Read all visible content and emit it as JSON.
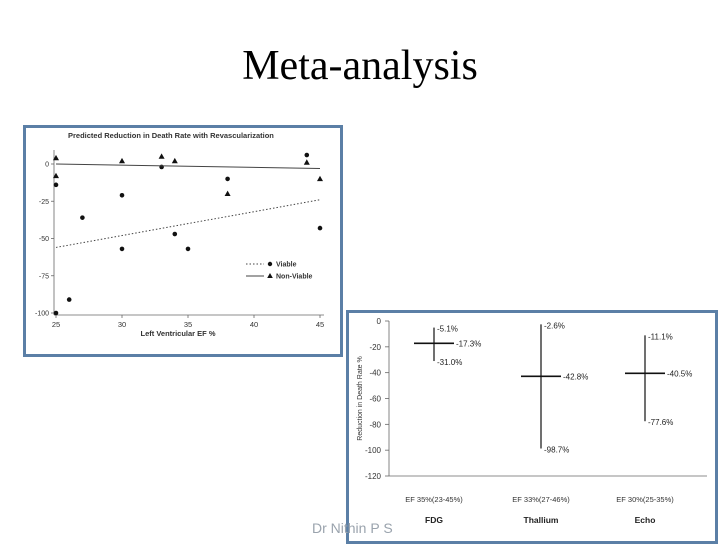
{
  "slide": {
    "title": "Meta-analysis",
    "footer": "Dr Nithin P S"
  },
  "chart_data": [
    {
      "type": "scatter",
      "title": "Predicted Reduction in Death Rate with Revascularization",
      "xlabel": "Left Ventricular EF %",
      "ylabel": "",
      "xlim": [
        25,
        45
      ],
      "ylim": [
        -100,
        0
      ],
      "xticks": [
        25,
        30,
        35,
        40,
        45
      ],
      "yticks": [
        0,
        -25,
        -50,
        -75,
        -100
      ],
      "legend": "lower-right",
      "series": [
        {
          "name": "Viable",
          "marker": "circle",
          "line_style": "dotted",
          "points": [
            [
              25,
              -14
            ],
            [
              25,
              -100
            ],
            [
              26,
              -91
            ],
            [
              27,
              -36
            ],
            [
              30,
              -21
            ],
            [
              30,
              -57
            ],
            [
              33,
              -2
            ],
            [
              34,
              -47
            ],
            [
              35,
              -57
            ],
            [
              38,
              -10
            ],
            [
              44,
              6
            ],
            [
              45,
              -43
            ]
          ],
          "trend": [
            [
              25,
              -56
            ],
            [
              45,
              -24
            ]
          ]
        },
        {
          "name": "Non-Viable",
          "marker": "triangle",
          "line_style": "solid",
          "points": [
            [
              25,
              4
            ],
            [
              25,
              -8
            ],
            [
              30,
              2
            ],
            [
              33,
              5
            ],
            [
              34,
              2
            ],
            [
              38,
              -20
            ],
            [
              44,
              1
            ],
            [
              45,
              -10
            ]
          ],
          "trend": [
            [
              25,
              0
            ],
            [
              45,
              -3
            ]
          ]
        }
      ]
    },
    {
      "type": "errorbar",
      "title": "",
      "ylabel": "Reduction in Death Rate %",
      "ylim": [
        -120,
        0
      ],
      "yticks": [
        0,
        -20,
        -40,
        -60,
        -80,
        -100,
        -120
      ],
      "categories": [
        "FDG",
        "Thallium",
        "Echo"
      ],
      "subcategories": [
        "EF 35%(23-45%)",
        "EF 33%(27-46%)",
        "EF 30%(25-35%)"
      ],
      "groups": [
        {
          "label": "FDG",
          "sub": "EF 35%(23-45%)",
          "mean": -17.3,
          "high": -5.1,
          "low": -31.0,
          "labels": {
            "high": "-5.1%",
            "mean": "-17.3%",
            "low": "-31.0%"
          }
        },
        {
          "label": "Thallium",
          "sub": "EF 33%(27-46%)",
          "mean": -42.8,
          "high": -2.6,
          "low": -98.7,
          "labels": {
            "high": "-2.6%",
            "mean": "-42.8%",
            "low": "-98.7%"
          }
        },
        {
          "label": "Echo",
          "sub": "EF 30%(25-35%)",
          "mean": -40.5,
          "high": -11.1,
          "low": -77.6,
          "labels": {
            "high": "-11.1%",
            "mean": "-40.5%",
            "low": "-77.6%"
          }
        }
      ]
    }
  ]
}
